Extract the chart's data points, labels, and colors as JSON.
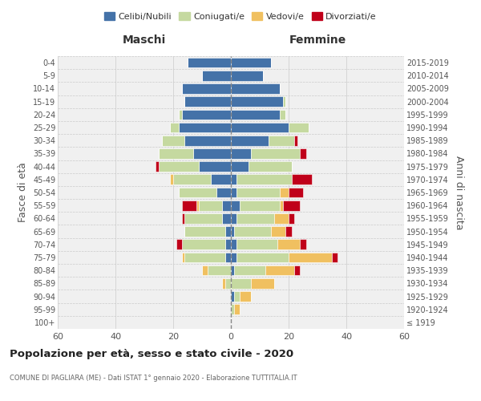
{
  "age_groups": [
    "100+",
    "95-99",
    "90-94",
    "85-89",
    "80-84",
    "75-79",
    "70-74",
    "65-69",
    "60-64",
    "55-59",
    "50-54",
    "45-49",
    "40-44",
    "35-39",
    "30-34",
    "25-29",
    "20-24",
    "15-19",
    "10-14",
    "5-9",
    "0-4"
  ],
  "birth_years": [
    "≤ 1919",
    "1920-1924",
    "1925-1929",
    "1930-1934",
    "1935-1939",
    "1940-1944",
    "1945-1949",
    "1950-1954",
    "1955-1959",
    "1960-1964",
    "1965-1969",
    "1970-1974",
    "1975-1979",
    "1980-1984",
    "1985-1989",
    "1990-1994",
    "1995-1999",
    "2000-2004",
    "2005-2009",
    "2010-2014",
    "2015-2019"
  ],
  "colors": {
    "celibi": "#4472a8",
    "coniugati": "#c5d9a0",
    "vedovi": "#f0c060",
    "divorziati": "#c0001a"
  },
  "maschi": {
    "celibi": [
      0,
      0,
      0,
      0,
      0,
      2,
      2,
      2,
      3,
      3,
      5,
      7,
      11,
      13,
      16,
      18,
      17,
      16,
      17,
      10,
      15
    ],
    "coniugati": [
      0,
      0,
      0,
      2,
      8,
      14,
      15,
      14,
      13,
      8,
      13,
      13,
      14,
      12,
      8,
      3,
      1,
      0,
      0,
      0,
      0
    ],
    "vedovi": [
      0,
      0,
      0,
      1,
      2,
      1,
      0,
      0,
      0,
      1,
      0,
      1,
      0,
      0,
      0,
      0,
      0,
      0,
      0,
      0,
      0
    ],
    "divorziati": [
      0,
      0,
      0,
      0,
      0,
      0,
      2,
      0,
      1,
      5,
      0,
      0,
      1,
      0,
      0,
      0,
      0,
      0,
      0,
      0,
      0
    ]
  },
  "femmine": {
    "celibi": [
      0,
      0,
      1,
      0,
      1,
      2,
      2,
      1,
      2,
      3,
      2,
      2,
      6,
      7,
      13,
      20,
      17,
      18,
      17,
      11,
      14
    ],
    "coniugati": [
      0,
      1,
      2,
      7,
      11,
      18,
      14,
      13,
      13,
      14,
      15,
      19,
      15,
      17,
      9,
      7,
      2,
      1,
      0,
      0,
      0
    ],
    "vedovi": [
      0,
      2,
      4,
      8,
      10,
      15,
      8,
      5,
      5,
      1,
      3,
      0,
      0,
      0,
      0,
      0,
      0,
      0,
      0,
      0,
      0
    ],
    "divorziati": [
      0,
      0,
      0,
      0,
      2,
      2,
      2,
      2,
      2,
      6,
      5,
      7,
      0,
      2,
      1,
      0,
      0,
      0,
      0,
      0,
      0
    ]
  },
  "xlim": 60,
  "title": "Popolazione per età, sesso e stato civile - 2020",
  "subtitle": "COMUNE DI PAGLIARA (ME) - Dati ISTAT 1° gennaio 2020 - Elaborazione TUTTITALIA.IT",
  "ylabel_left": "Fasce di età",
  "ylabel_right": "Anni di nascita",
  "header_maschi": "Maschi",
  "header_femmine": "Femmine",
  "legend_labels": [
    "Celibi/Nubili",
    "Coniugati/e",
    "Vedovi/e",
    "Divorziati/e"
  ],
  "background_color": "#ffffff",
  "plot_bg_color": "#f0f0f0",
  "grid_color": "#cccccc"
}
